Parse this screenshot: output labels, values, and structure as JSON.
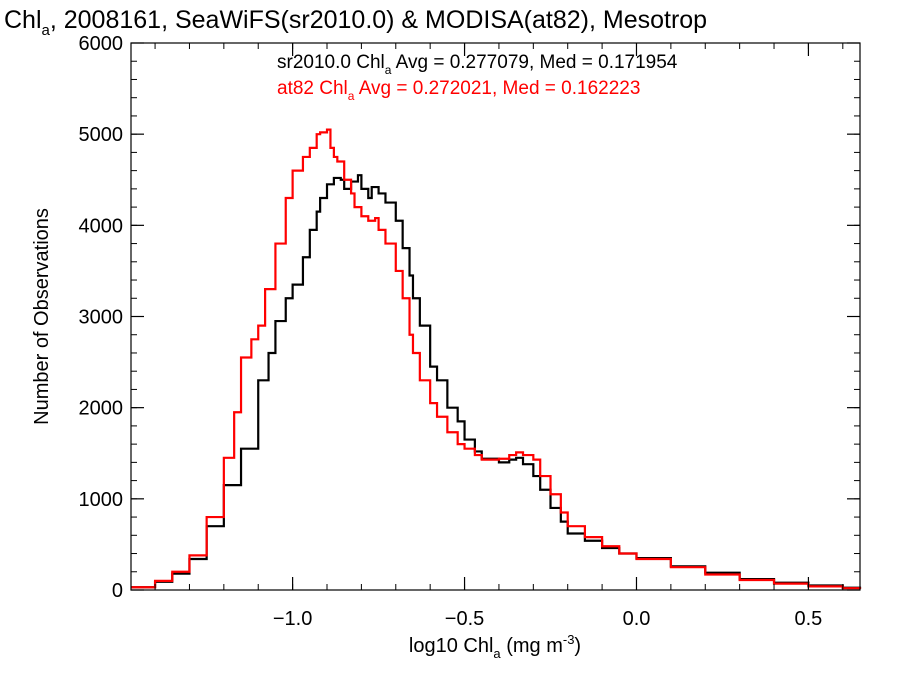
{
  "chart_data": {
    "type": "line",
    "title": {
      "pre": "Chl",
      "sub": "a",
      "post": ", 2008161, SeaWiFS(sr2010.0) & MODISA(at82), Mesotrop"
    },
    "xlabel": {
      "pre": "log10 Chl",
      "sub": "a",
      "mid": " (mg m",
      "sup": "-3",
      "post": ")"
    },
    "ylabel": "Number of Observations",
    "xlim": [
      -1.47,
      0.65
    ],
    "ylim": [
      0,
      6000
    ],
    "x_ticks": [
      -1.0,
      -0.5,
      0.0,
      0.5
    ],
    "x_tick_labels": [
      "−1.0",
      "−0.5",
      "0.0",
      "0.5"
    ],
    "y_ticks": [
      0,
      1000,
      2000,
      3000,
      4000,
      5000,
      6000
    ],
    "y_tick_labels": [
      "0",
      "1000",
      "2000",
      "3000",
      "4000",
      "5000",
      "6000"
    ],
    "grid": false,
    "series": [
      {
        "name": "sr2010.0",
        "color": "#000000",
        "stats": {
          "pre": "sr2010.0 Chl",
          "sub": "a",
          "post": " Avg = 0.277079, Med = 0.171954"
        },
        "x": [
          -1.47,
          -1.4,
          -1.35,
          -1.3,
          -1.25,
          -1.2,
          -1.15,
          -1.1,
          -1.07,
          -1.05,
          -1.02,
          -1.0,
          -0.97,
          -0.95,
          -0.93,
          -0.92,
          -0.9,
          -0.88,
          -0.86,
          -0.85,
          -0.83,
          -0.81,
          -0.8,
          -0.78,
          -0.77,
          -0.75,
          -0.73,
          -0.7,
          -0.68,
          -0.66,
          -0.65,
          -0.63,
          -0.6,
          -0.58,
          -0.55,
          -0.52,
          -0.5,
          -0.47,
          -0.45,
          -0.4,
          -0.37,
          -0.35,
          -0.33,
          -0.3,
          -0.28,
          -0.25,
          -0.22,
          -0.2,
          -0.15,
          -0.1,
          -0.05,
          0.0,
          0.1,
          0.2,
          0.3,
          0.4,
          0.5,
          0.6,
          0.65
        ],
        "y": [
          30,
          90,
          180,
          340,
          700,
          1150,
          1550,
          2300,
          2600,
          2950,
          3200,
          3350,
          3650,
          3950,
          4150,
          4300,
          4450,
          4520,
          4500,
          4400,
          4480,
          4550,
          4400,
          4300,
          4420,
          4350,
          4250,
          4050,
          3750,
          3450,
          3200,
          2900,
          2450,
          2300,
          2000,
          1850,
          1650,
          1520,
          1440,
          1400,
          1430,
          1450,
          1380,
          1250,
          1100,
          900,
          750,
          620,
          540,
          460,
          400,
          350,
          260,
          190,
          120,
          80,
          50,
          25,
          15
        ]
      },
      {
        "name": "at82",
        "color": "#ff0000",
        "stats": {
          "pre": "at82 Chl",
          "sub": "a",
          "post": " Avg = 0.272021, Med = 0.162223"
        },
        "x": [
          -1.47,
          -1.4,
          -1.35,
          -1.3,
          -1.25,
          -1.2,
          -1.17,
          -1.15,
          -1.12,
          -1.1,
          -1.08,
          -1.05,
          -1.02,
          -1.0,
          -0.97,
          -0.95,
          -0.93,
          -0.92,
          -0.9,
          -0.89,
          -0.88,
          -0.87,
          -0.85,
          -0.83,
          -0.82,
          -0.8,
          -0.78,
          -0.76,
          -0.75,
          -0.73,
          -0.7,
          -0.68,
          -0.66,
          -0.65,
          -0.63,
          -0.6,
          -0.58,
          -0.55,
          -0.52,
          -0.5,
          -0.47,
          -0.45,
          -0.4,
          -0.37,
          -0.35,
          -0.33,
          -0.3,
          -0.28,
          -0.25,
          -0.22,
          -0.2,
          -0.15,
          -0.1,
          -0.05,
          0.0,
          0.1,
          0.2,
          0.3,
          0.4,
          0.5,
          0.6,
          0.65
        ],
        "y": [
          30,
          100,
          200,
          380,
          800,
          1450,
          1950,
          2550,
          2750,
          2900,
          3300,
          3800,
          4300,
          4600,
          4750,
          4850,
          5000,
          5020,
          5050,
          4850,
          4750,
          4700,
          4500,
          4350,
          4200,
          4100,
          4050,
          4080,
          3950,
          3800,
          3500,
          3200,
          2800,
          2600,
          2300,
          2050,
          1900,
          1730,
          1600,
          1550,
          1480,
          1430,
          1440,
          1480,
          1510,
          1480,
          1430,
          1250,
          1050,
          850,
          700,
          580,
          480,
          400,
          340,
          250,
          170,
          110,
          70,
          40,
          20,
          10
        ]
      }
    ]
  }
}
